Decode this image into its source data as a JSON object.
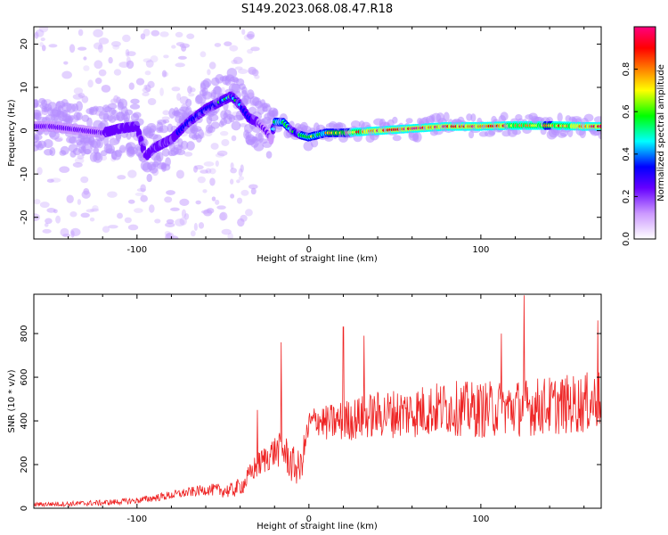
{
  "title": "S149.2023.068.08.47.R18",
  "chart_data": [
    {
      "type": "heatmap",
      "name": "spectrogram",
      "xlabel": "Height of straight line (km)",
      "ylabel": "Frequency (Hz)",
      "xlim": [
        -160,
        170
      ],
      "ylim": [
        -25,
        24
      ],
      "xticks": [
        -100,
        0,
        100
      ],
      "yticks": [
        -20,
        -10,
        0,
        10,
        20
      ],
      "colorbar": {
        "label": "Normalized spectral amplitude",
        "range": [
          0,
          1
        ],
        "ticks": [
          0.0,
          0.2,
          0.4,
          0.6,
          0.8
        ],
        "colors": [
          "#ffffff",
          "#cc99ff",
          "#6600ff",
          "#0000ff",
          "#00ffff",
          "#00ff00",
          "#ffff00",
          "#ff8000",
          "#ff0000",
          "#ff0080"
        ]
      },
      "ridge": {
        "x": [
          -160,
          -150,
          -140,
          -130,
          -120,
          -110,
          -100,
          -95,
          -90,
          -80,
          -70,
          -60,
          -50,
          -45,
          -40,
          -35,
          -30,
          -25,
          -22,
          -20,
          -15,
          -10,
          -5,
          0,
          10,
          20,
          40,
          60,
          80,
          100,
          120,
          140,
          160,
          170
        ],
        "y": [
          1,
          1,
          0.5,
          0,
          -0.5,
          0.5,
          1,
          -6,
          -4,
          -2,
          2,
          5,
          7,
          8,
          6,
          3,
          2,
          0,
          -2,
          2,
          2,
          0,
          -1,
          -1.5,
          -0.5,
          -0.5,
          0,
          0.5,
          1,
          1,
          1.2,
          1.2,
          1,
          1
        ],
        "amp": [
          0.25,
          0.28,
          0.3,
          0.3,
          0.3,
          0.32,
          0.32,
          0.3,
          0.32,
          0.34,
          0.36,
          0.38,
          0.42,
          0.45,
          0.42,
          0.36,
          0.3,
          0.25,
          0.2,
          0.55,
          0.6,
          0.45,
          0.5,
          0.55,
          0.62,
          0.68,
          0.82,
          0.85,
          0.85,
          0.8,
          0.75,
          0.7,
          0.8,
          0.85
        ]
      }
    },
    {
      "type": "line",
      "name": "snr",
      "xlabel": "Height of straight line (km)",
      "ylabel": "SNR (10 * v/v)",
      "xlim": [
        -160,
        170
      ],
      "ylim": [
        0,
        980
      ],
      "xticks": [
        -100,
        0,
        100
      ],
      "yticks": [
        0,
        200,
        400,
        600,
        800
      ],
      "color": "#ee2222",
      "trend": {
        "x": [
          -160,
          -140,
          -120,
          -100,
          -80,
          -60,
          -45,
          -38,
          -32,
          -25,
          -20,
          -15,
          -10,
          -5,
          0,
          5,
          10,
          20,
          40,
          60,
          80,
          100,
          120,
          140,
          160,
          170
        ],
        "y": [
          18,
          20,
          25,
          35,
          60,
          85,
          80,
          110,
          180,
          230,
          260,
          270,
          200,
          180,
          380,
          410,
          390,
          400,
          430,
          440,
          460,
          450,
          460,
          470,
          480,
          500
        ]
      },
      "noise": {
        "x": [
          -160,
          -100,
          -60,
          -40,
          -30,
          -10,
          0,
          20,
          60,
          100,
          170
        ],
        "amp": [
          10,
          15,
          25,
          40,
          60,
          90,
          70,
          95,
          120,
          130,
          140
        ]
      },
      "peaks": [
        {
          "x": -30,
          "y": 450
        },
        {
          "x": -16,
          "y": 760
        },
        {
          "x": 20,
          "y": 830
        },
        {
          "x": 32,
          "y": 790
        },
        {
          "x": 112,
          "y": 800
        },
        {
          "x": 125,
          "y": 975
        },
        {
          "x": 168,
          "y": 860
        }
      ]
    }
  ]
}
